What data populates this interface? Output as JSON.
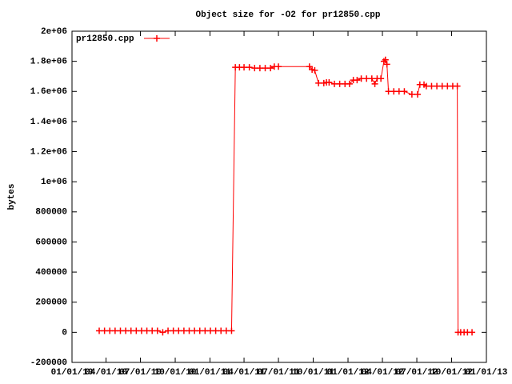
{
  "chart_data": {
    "type": "line",
    "title": "Object size for -O2 for pr12850.cpp",
    "y_label": "bytes",
    "legend_position": "top-left",
    "xlim": [
      "2010-01-01",
      "2013-01-01"
    ],
    "xticks": [
      {
        "value": "2010-01-01",
        "label": "01/01/10"
      },
      {
        "value": "2010-04-01",
        "label": "04/01/10"
      },
      {
        "value": "2010-07-01",
        "label": "07/01/10"
      },
      {
        "value": "2010-10-01",
        "label": "10/01/10"
      },
      {
        "value": "2011-01-01",
        "label": "01/01/11"
      },
      {
        "value": "2011-04-01",
        "label": "04/01/11"
      },
      {
        "value": "2011-07-01",
        "label": "07/01/11"
      },
      {
        "value": "2011-10-01",
        "label": "10/01/11"
      },
      {
        "value": "2012-01-01",
        "label": "01/01/12"
      },
      {
        "value": "2012-04-01",
        "label": "04/01/12"
      },
      {
        "value": "2012-07-01",
        "label": "07/01/12"
      },
      {
        "value": "2012-10-01",
        "label": "10/01/12"
      },
      {
        "value": "2013-01-01",
        "label": "01/01/13"
      }
    ],
    "ylim": [
      -200000,
      2000000
    ],
    "yticks": [
      -200000,
      0,
      200000,
      400000,
      600000,
      800000,
      {
        "value": 1000000,
        "label": "1e+06"
      },
      {
        "value": 1200000,
        "label": "1.2e+06"
      },
      {
        "value": 1400000,
        "label": "1.4e+06"
      },
      {
        "value": 1600000,
        "label": "1.6e+06"
      },
      {
        "value": 1800000,
        "label": "1.8e+06"
      },
      {
        "value": 2000000,
        "label": "2e+06"
      }
    ],
    "x": [
      "2010-03-14",
      "2010-03-28",
      "2010-04-11",
      "2010-04-25",
      "2010-05-09",
      "2010-05-23",
      "2010-06-06",
      "2010-06-20",
      "2010-07-04",
      "2010-07-18",
      "2010-08-01",
      "2010-08-15",
      "2010-08-29",
      "2010-09-12",
      "2010-09-26",
      "2010-10-10",
      "2010-10-24",
      "2010-11-07",
      "2010-11-21",
      "2010-12-05",
      "2010-12-19",
      "2011-01-02",
      "2011-01-16",
      "2011-01-30",
      "2011-02-13",
      "2011-02-27",
      "2011-03-09",
      "2011-03-20",
      "2011-04-01",
      "2011-04-15",
      "2011-04-29",
      "2011-05-13",
      "2011-05-27",
      "2011-06-10",
      "2011-06-20",
      "2011-07-01",
      "2011-09-21",
      "2011-09-28",
      "2011-10-05",
      "2011-10-15",
      "2011-10-29",
      "2011-11-05",
      "2011-11-12",
      "2011-11-26",
      "2011-12-10",
      "2011-12-24",
      "2012-01-05",
      "2012-01-15",
      "2012-01-25",
      "2012-02-05",
      "2012-02-19",
      "2012-03-04",
      "2012-03-12",
      "2012-03-18",
      "2012-03-28",
      "2012-04-05",
      "2012-04-09",
      "2012-04-13",
      "2012-04-17",
      "2012-05-01",
      "2012-05-15",
      "2012-05-29",
      "2012-06-18",
      "2012-07-03",
      "2012-07-09",
      "2012-07-20",
      "2012-07-26",
      "2012-08-09",
      "2012-08-23",
      "2012-09-06",
      "2012-09-20",
      "2012-10-04",
      "2012-10-16",
      "2012-10-18",
      "2012-10-25",
      "2012-11-03",
      "2012-11-12",
      "2012-11-24"
    ],
    "series": [
      {
        "name": "pr12850.cpp",
        "color": "#ff0000",
        "values": [
          10000,
          10000,
          10000,
          10000,
          10000,
          10000,
          10000,
          10000,
          10000,
          10000,
          10000,
          10000,
          0,
          10000,
          10000,
          10000,
          10000,
          10000,
          10000,
          10000,
          10000,
          10000,
          10000,
          10000,
          10000,
          10000,
          1760000,
          1760000,
          1760000,
          1760000,
          1755000,
          1755000,
          1755000,
          1755000,
          1765000,
          1765000,
          1765000,
          1745000,
          1740000,
          1655000,
          1655000,
          1660000,
          1660000,
          1650000,
          1650000,
          1650000,
          1650000,
          1675000,
          1675000,
          1685000,
          1685000,
          1685000,
          1650000,
          1685000,
          1685000,
          1800000,
          1810000,
          1780000,
          1600000,
          1600000,
          1600000,
          1600000,
          1580000,
          1580000,
          1645000,
          1645000,
          1635000,
          1635000,
          1635000,
          1635000,
          1635000,
          1635000,
          1635000,
          0,
          0,
          0,
          0,
          0
        ]
      }
    ]
  }
}
